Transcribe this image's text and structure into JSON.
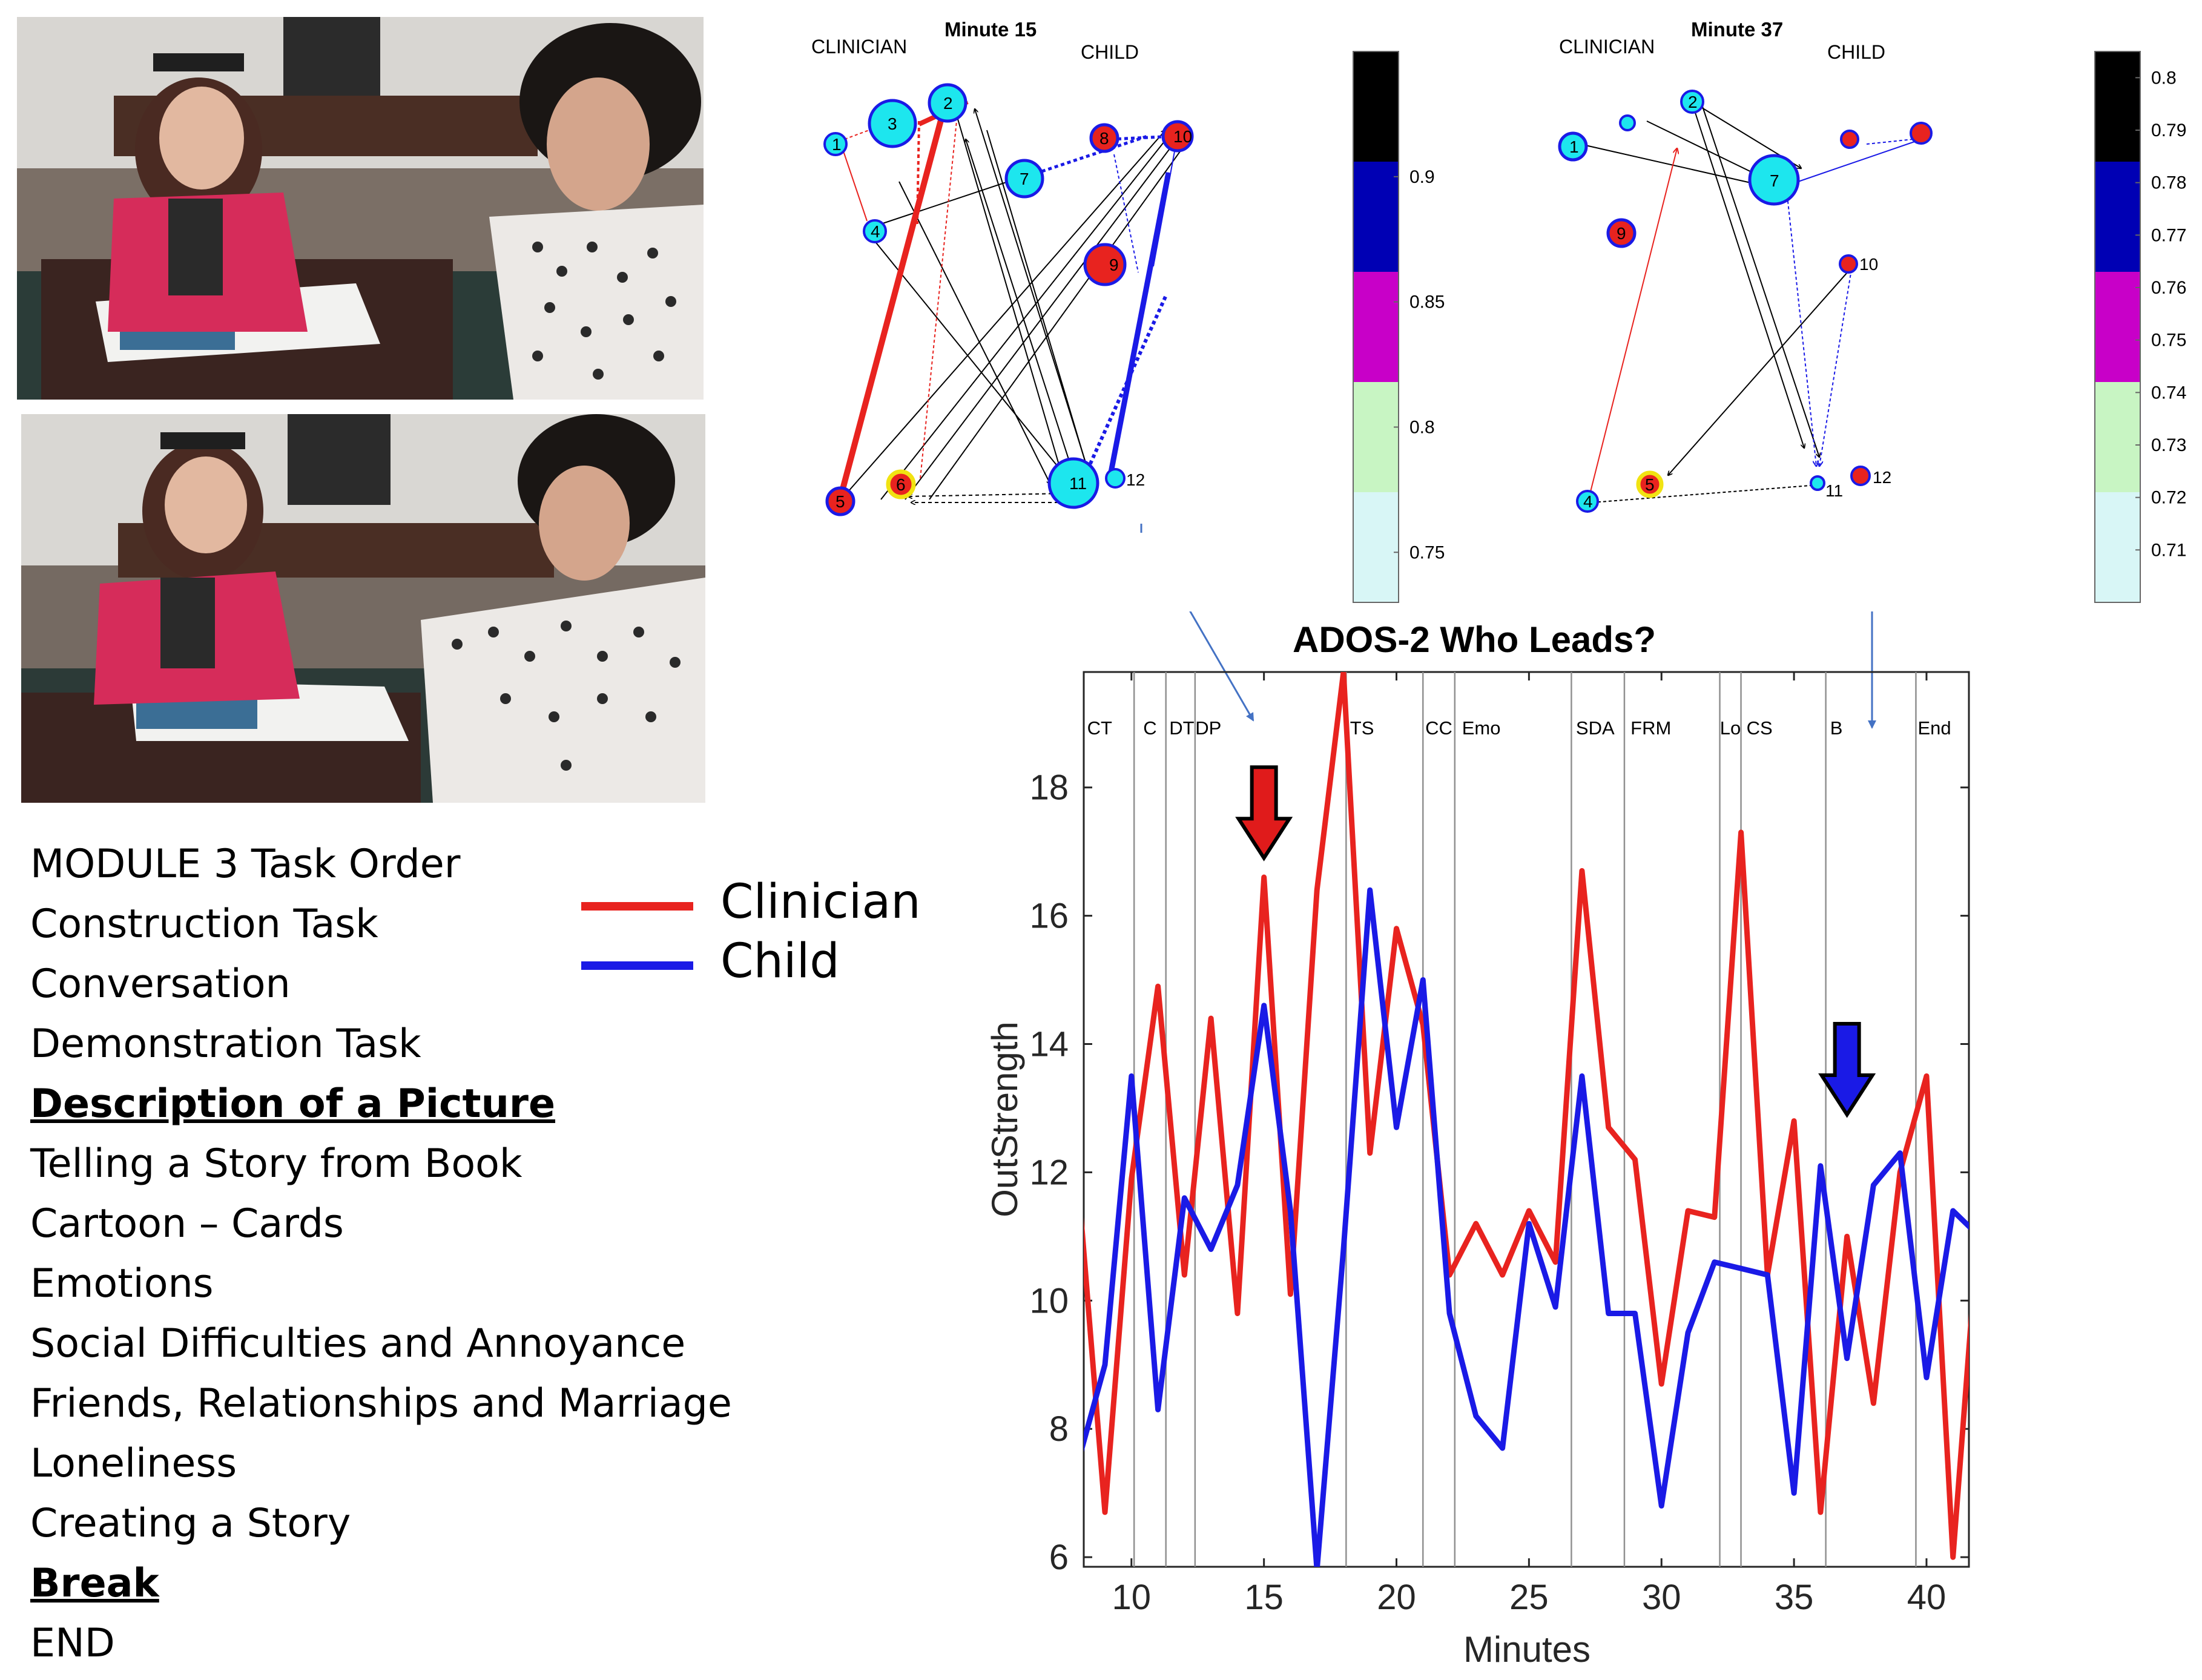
{
  "photos": [
    {
      "name": "top"
    },
    {
      "name": "bottom"
    }
  ],
  "task_list": {
    "items": [
      {
        "label": "MODULE 3 Task Order",
        "highlight": false
      },
      {
        "label": "Construction Task",
        "highlight": false
      },
      {
        "label": "Conversation",
        "highlight": false
      },
      {
        "label": "Demonstration Task",
        "highlight": false
      },
      {
        "label": "Description  of a Picture",
        "highlight": true
      },
      {
        "label": "Telling a Story from Book",
        "highlight": false
      },
      {
        "label": "Cartoon – Cards",
        "highlight": false
      },
      {
        "label": "Emotions",
        "highlight": false
      },
      {
        "label": "Social Difficulties and Annoyance",
        "highlight": false
      },
      {
        "label": "Friends, Relationships and Marriage",
        "highlight": false
      },
      {
        "label": "Loneliness",
        "highlight": false
      },
      {
        "label": "Creating a Story",
        "highlight": false
      },
      {
        "label": "Break",
        "highlight": true
      },
      {
        "label": "END",
        "highlight": false
      }
    ]
  },
  "legend": {
    "entries": [
      {
        "label": "Clinician",
        "color": "#e8231f"
      },
      {
        "label": "Child",
        "color": "#1a1ae6"
      }
    ]
  },
  "networks": [
    {
      "title": "Minute 15",
      "left_label": "CLINICIAN",
      "right_label": "CHILD",
      "node_labels": [
        "1",
        "2",
        "3",
        "4",
        "5",
        "6",
        "7",
        "8",
        "9",
        "10",
        "11",
        "12"
      ]
    },
    {
      "title": "Minute 37",
      "left_label": "CLINICIAN",
      "right_label": "CHILD",
      "node_labels": [
        "1",
        "2",
        "4",
        "5",
        "7",
        "9",
        "10",
        "11",
        "12"
      ]
    }
  ],
  "colorbars": [
    {
      "ticks": [
        "0.9",
        "0.85",
        "0.8",
        "0.75"
      ],
      "tick_values": [
        0.9,
        0.85,
        0.8,
        0.75
      ],
      "range": [
        0.73,
        0.95
      ],
      "segments": [
        "#000000",
        "#0000b4",
        "#c800c8",
        "#c8f5c3",
        "#d8f6f6"
      ]
    },
    {
      "ticks": [
        "0.8",
        "0.79",
        "0.78",
        "0.77",
        "0.76",
        "0.75",
        "0.74",
        "0.73",
        "0.72",
        "0.71"
      ],
      "tick_values": [
        0.8,
        0.79,
        0.78,
        0.77,
        0.76,
        0.75,
        0.74,
        0.73,
        0.72,
        0.71
      ],
      "range": [
        0.7,
        0.805
      ],
      "segments": [
        "#000000",
        "#0000b4",
        "#c800c8",
        "#c8f5c3",
        "#d8f6f6"
      ]
    }
  ],
  "chart_data": {
    "type": "line",
    "title": "ADOS-2 Who Leads?",
    "xlabel": "Minutes",
    "ylabel": "OutStrength",
    "xlim": [
      8.2,
      41.6
    ],
    "ylim": [
      5.85,
      19.8
    ],
    "xticks": [
      10,
      15,
      20,
      25,
      30,
      35,
      40
    ],
    "yticks": [
      6,
      8,
      10,
      12,
      14,
      16,
      18
    ],
    "x": [
      8,
      9,
      10,
      11,
      12,
      13,
      14,
      15,
      16,
      17,
      18,
      19,
      20,
      21,
      22,
      23,
      24,
      25,
      26,
      27,
      28,
      29,
      30,
      31,
      32,
      33,
      34,
      35,
      36,
      37,
      38,
      39,
      40,
      41,
      42
    ],
    "series": [
      {
        "name": "Clinician",
        "color": "#e8231f",
        "values": [
          11.8,
          6.7,
          11.9,
          14.9,
          10.4,
          14.4,
          9.8,
          16.6,
          10.1,
          16.4,
          19.8,
          12.3,
          15.8,
          14.3,
          10.4,
          11.2,
          10.4,
          11.4,
          10.6,
          16.7,
          12.7,
          12.2,
          8.7,
          11.4,
          11.3,
          17.3,
          10.4,
          12.8,
          6.7,
          11.0,
          8.4,
          12.0,
          13.5,
          6.0,
          11.4
        ]
      },
      {
        "name": "Child",
        "color": "#1a1ae6",
        "values": [
          7.5,
          9.0,
          13.5,
          8.3,
          11.6,
          10.8,
          11.8,
          14.6,
          11.4,
          5.8,
          10.8,
          16.4,
          12.7,
          15.0,
          9.8,
          8.2,
          7.7,
          11.2,
          9.9,
          13.5,
          9.8,
          9.8,
          6.8,
          9.5,
          10.6,
          10.5,
          10.4,
          7.0,
          12.1,
          9.1,
          11.8,
          12.3,
          8.8,
          11.4,
          11.0
        ]
      }
    ],
    "task_boundaries": [
      10.1,
      11.3,
      12.4,
      18.1,
      21.0,
      22.2,
      26.6,
      28.6,
      32.2,
      33.0,
      36.2,
      39.6
    ],
    "task_labels": [
      {
        "text": "CT",
        "x": 8.8
      },
      {
        "text": "C",
        "x": 10.7
      },
      {
        "text": "DT",
        "x": 11.9
      },
      {
        "text": "DP",
        "x": 12.9
      },
      {
        "text": "TS",
        "x": 18.7
      },
      {
        "text": "CC",
        "x": 21.6
      },
      {
        "text": "Emo",
        "x": 23.2
      },
      {
        "text": "SDA",
        "x": 27.5
      },
      {
        "text": "FRM",
        "x": 29.6
      },
      {
        "text": "Lo",
        "x": 32.6
      },
      {
        "text": "CS",
        "x": 33.7
      },
      {
        "text": "B",
        "x": 36.6
      },
      {
        "text": "End",
        "x": 40.3
      }
    ],
    "arrows": [
      {
        "x": 15.0,
        "y": 16.9,
        "color": "#e01b1b"
      },
      {
        "x": 37.0,
        "y": 12.9,
        "color": "#1a1ae6"
      }
    ]
  }
}
